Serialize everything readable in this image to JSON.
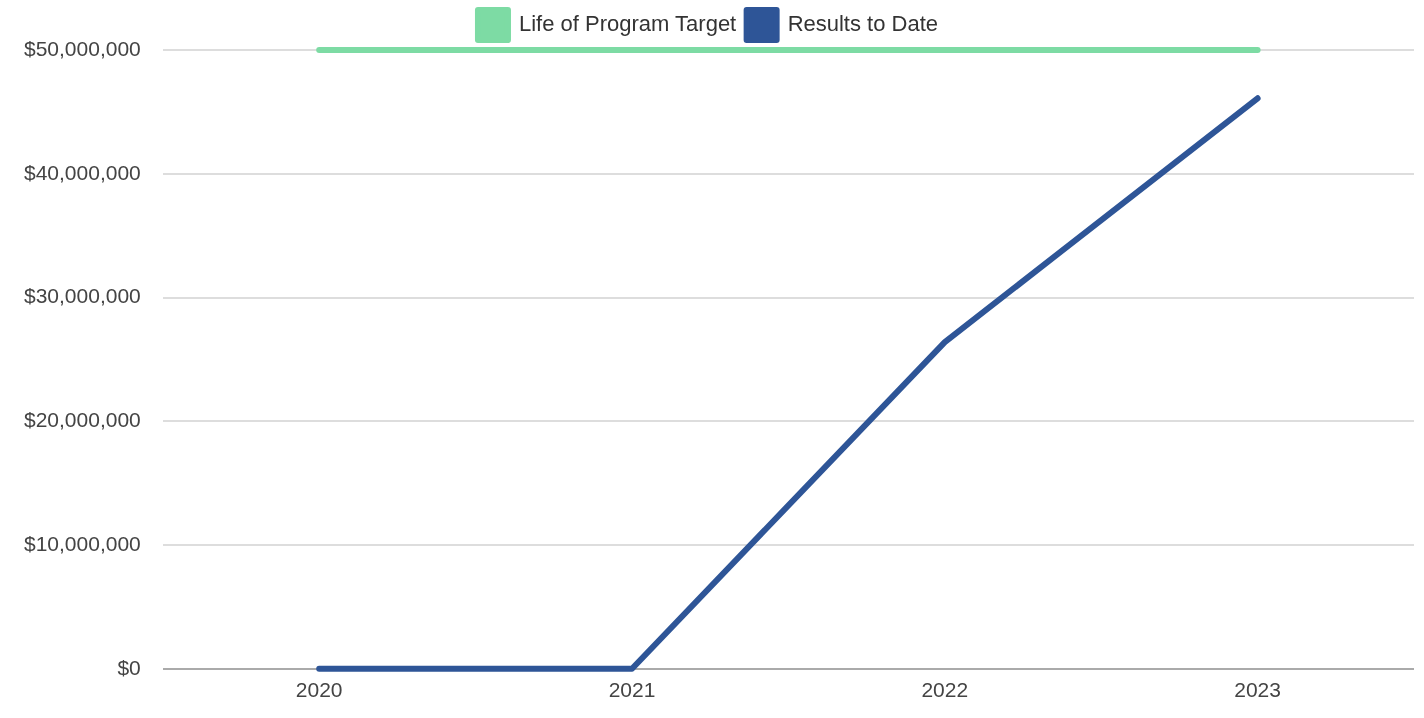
{
  "chart_data": {
    "type": "line",
    "categories": [
      "2020",
      "2021",
      "2022",
      "2023"
    ],
    "series": [
      {
        "name": "Life of Program Target",
        "color": "#7ddba4",
        "values": [
          50000000,
          50000000,
          50000000,
          50000000
        ]
      },
      {
        "name": "Results to Date",
        "color": "#2e5597",
        "values": [
          0,
          0,
          26400000,
          46100000
        ]
      }
    ],
    "ylim": [
      0,
      50000000
    ],
    "yticks": [
      {
        "value": 0,
        "label": "$0"
      },
      {
        "value": 10000000,
        "label": "$10,000,000"
      },
      {
        "value": 20000000,
        "label": "$20,000,000"
      },
      {
        "value": 30000000,
        "label": "$30,000,000"
      },
      {
        "value": 40000000,
        "label": "$40,000,000"
      },
      {
        "value": 50000000,
        "label": "$50,000,000"
      }
    ],
    "grid": "y",
    "legend": "top",
    "marker": "none",
    "line_style": "solid"
  }
}
